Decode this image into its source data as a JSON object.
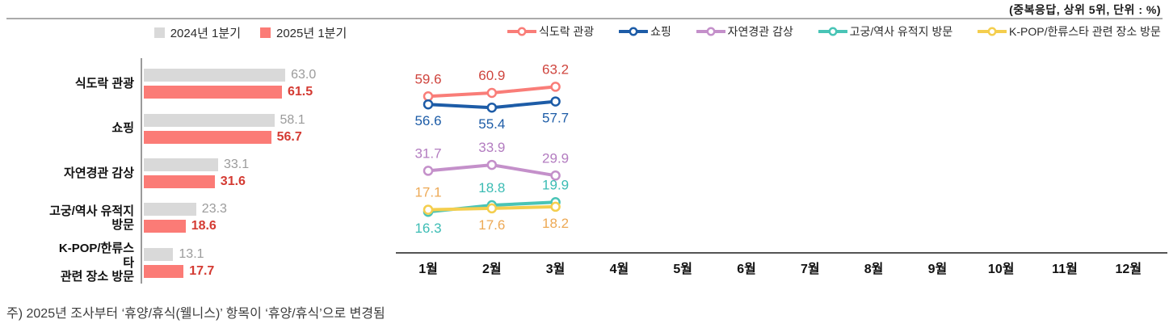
{
  "header": {
    "note": "(중복응답, 상위 5위, 단위 : %)"
  },
  "footnote": "주) 2025년 조사부터 ‘휴양/휴식(웰니스)’ 항목이 ‘휴양/휴식’으로 변경됨",
  "colors": {
    "divider": "#aaaaaa",
    "bar_axis": "#9a9a9a",
    "line_axis": "#555555",
    "gray_series": "#d9d9d9",
    "red_series": "#fb7b76"
  },
  "chart_data": [
    {
      "type": "bar",
      "orientation": "horizontal",
      "title": "",
      "categories": [
        "식도락 관광",
        "쇼핑",
        "자연경관 감상",
        "고궁/역사 유적지\n방문",
        "K-POP/한류스타\n관련 장소 방문"
      ],
      "series": [
        {
          "name": "2024년 1분기",
          "color": "#d9d9d9",
          "label_color": "#9b9b9b",
          "values": [
            63.0,
            58.1,
            33.1,
            23.3,
            13.1
          ]
        },
        {
          "name": "2025년 1분기",
          "color": "#fb7b76",
          "label_color": "#d43b33",
          "values": [
            61.5,
            56.7,
            31.6,
            18.6,
            17.7
          ]
        }
      ],
      "xlim": [
        0,
        70
      ],
      "grid": false,
      "legend_position": "top-center"
    },
    {
      "type": "line",
      "title": "",
      "x_labels": [
        "1월",
        "2월",
        "3월",
        "4월",
        "5월",
        "6월",
        "7월",
        "8월",
        "9월",
        "10월",
        "11월",
        "12월"
      ],
      "series": [
        {
          "name": "식도락 관광",
          "color": "#f97d78",
          "label_color": "#cf453e",
          "values": [
            59.6,
            60.9,
            63.2
          ],
          "label_pos": [
            "above",
            "above",
            "above"
          ]
        },
        {
          "name": "쇼핑",
          "color": "#1d5ca7",
          "label_color": "#1d5ca7",
          "values": [
            56.6,
            55.4,
            57.7
          ],
          "label_pos": [
            "below",
            "below",
            "below"
          ]
        },
        {
          "name": "자연경관 감상",
          "color": "#c490ca",
          "label_color": "#b37cc0",
          "values": [
            31.7,
            33.9,
            29.9
          ],
          "label_pos": [
            "above",
            "above",
            "above"
          ]
        },
        {
          "name": "고궁/역사 유적지 방문",
          "color": "#49c4b6",
          "label_color": "#3cbcb4",
          "values": [
            16.3,
            18.8,
            19.9
          ],
          "label_pos": [
            "below",
            "above",
            "above"
          ]
        },
        {
          "name": "K-POP/한류스타 관련 장소 방문",
          "color": "#f4ce4e",
          "label_color": "#eda955",
          "values": [
            17.1,
            17.6,
            18.2
          ],
          "label_pos": [
            "above",
            "below",
            "below"
          ]
        }
      ],
      "ylim": [
        0,
        77
      ],
      "grid": false,
      "legend_position": "top-right"
    }
  ]
}
